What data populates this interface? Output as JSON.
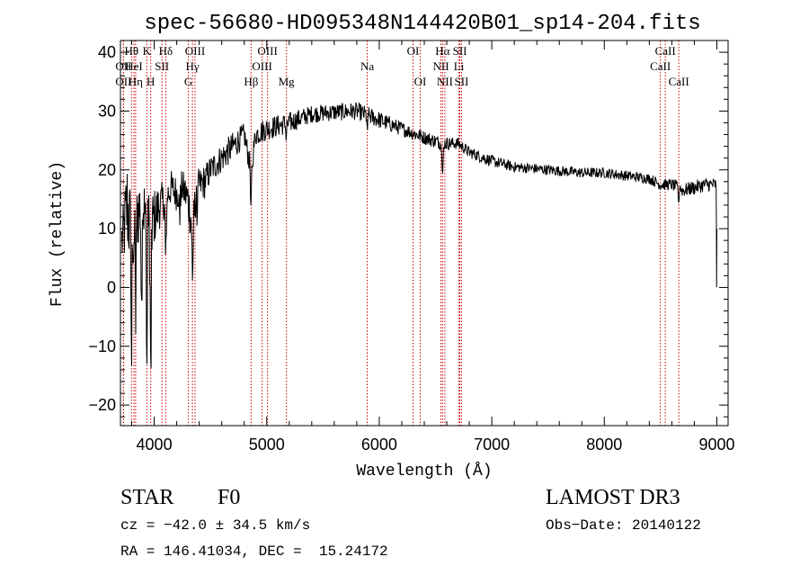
{
  "chart_data": {
    "type": "line",
    "title": "spec-56680-HD095348N144420B01_sp14-204.fits",
    "xlabel": "Wavelength (Å)",
    "ylabel": "Flux (relative)",
    "xlim": [
      3700,
      9100
    ],
    "ylim": [
      -23.5,
      42
    ],
    "xticks": [
      4000,
      5000,
      6000,
      7000,
      8000,
      9000
    ],
    "yticks": [
      -20,
      -10,
      0,
      10,
      20,
      30,
      40
    ],
    "color": "#000000",
    "line_color": "#cc0000",
    "spectrum_knots": [
      [
        3720,
        8,
        5
      ],
      [
        3760,
        14,
        9
      ],
      [
        3800,
        8,
        8
      ],
      [
        3850,
        13,
        7
      ],
      [
        3900,
        14,
        6
      ],
      [
        3950,
        10,
        7
      ],
      [
        4000,
        12,
        5
      ],
      [
        4050,
        14,
        4
      ],
      [
        4100,
        15,
        3
      ],
      [
        4150,
        17,
        3
      ],
      [
        4200,
        16,
        3
      ],
      [
        4250,
        17,
        3
      ],
      [
        4300,
        15,
        4
      ],
      [
        4340,
        10,
        4
      ],
      [
        4380,
        17,
        3
      ],
      [
        4450,
        18,
        3
      ],
      [
        4500,
        20,
        2.5
      ],
      [
        4600,
        22,
        2.5
      ],
      [
        4700,
        24,
        2.5
      ],
      [
        4800,
        26,
        2
      ],
      [
        4860,
        20,
        2
      ],
      [
        4900,
        26,
        2
      ],
      [
        5000,
        27,
        2
      ],
      [
        5200,
        28,
        1.8
      ],
      [
        5400,
        29.5,
        1.5
      ],
      [
        5600,
        29.8,
        1.5
      ],
      [
        5800,
        30,
        1.5
      ],
      [
        6000,
        28.5,
        1.5
      ],
      [
        6200,
        27,
        1.2
      ],
      [
        6400,
        25.5,
        1.2
      ],
      [
        6560,
        24.5,
        1.2
      ],
      [
        6700,
        24.5,
        1
      ],
      [
        6800,
        23,
        1
      ],
      [
        7000,
        21.5,
        1
      ],
      [
        7200,
        20.5,
        0.9
      ],
      [
        7500,
        20,
        0.9
      ],
      [
        7800,
        19.5,
        0.9
      ],
      [
        8000,
        19.5,
        0.9
      ],
      [
        8200,
        19,
        0.9
      ],
      [
        8400,
        18.5,
        0.9
      ],
      [
        8500,
        17.5,
        1
      ],
      [
        8600,
        17.5,
        1
      ],
      [
        8700,
        16.5,
        1.2
      ],
      [
        8800,
        17,
        1.2
      ],
      [
        8900,
        17.5,
        1.2
      ],
      [
        8980,
        17.5,
        1.2
      ]
    ],
    "spectrum_dips": [
      [
        3798,
        22
      ],
      [
        3835,
        20
      ],
      [
        3889,
        25
      ],
      [
        3934,
        31
      ],
      [
        3969,
        30
      ],
      [
        4102,
        12
      ],
      [
        4226,
        6
      ],
      [
        4341,
        10
      ],
      [
        4383,
        6
      ],
      [
        4861,
        7
      ],
      [
        5172,
        3
      ],
      [
        5893,
        3
      ],
      [
        6563,
        7
      ],
      [
        8662,
        2
      ]
    ],
    "spectral_lines": [
      {
        "name": "OII",
        "wavelength": 3727,
        "row": 2
      },
      {
        "name": "OII",
        "wavelength": 3727,
        "row": 3
      },
      {
        "name": "Hθ",
        "wavelength": 3798,
        "row": 1
      },
      {
        "name": "HeI",
        "wavelength": 3820,
        "row": 2
      },
      {
        "name": "Hη",
        "wavelength": 3835,
        "row": 3
      },
      {
        "name": "K",
        "wavelength": 3934,
        "row": 1
      },
      {
        "name": "SII",
        "wavelength": 4069,
        "row": 2
      },
      {
        "name": "H",
        "wavelength": 3969,
        "row": 3
      },
      {
        "name": "Hδ",
        "wavelength": 4102,
        "row": 1
      },
      {
        "name": "OIII",
        "wavelength": 4363,
        "row": 1
      },
      {
        "name": "Hγ",
        "wavelength": 4340,
        "row": 2
      },
      {
        "name": "G",
        "wavelength": 4304,
        "row": 3
      },
      {
        "name": "Hβ",
        "wavelength": 4861,
        "row": 3
      },
      {
        "name": "OIII",
        "wavelength": 5007,
        "row": 1
      },
      {
        "name": "OIII",
        "wavelength": 4959,
        "row": 2
      },
      {
        "name": "Mg",
        "wavelength": 5175,
        "row": 3
      },
      {
        "name": "Na",
        "wavelength": 5893,
        "row": 2
      },
      {
        "name": "OI",
        "wavelength": 6300,
        "row": 1
      },
      {
        "name": "OI",
        "wavelength": 6364,
        "row": 3
      },
      {
        "name": "Hα",
        "wavelength": 6563,
        "row": 1
      },
      {
        "name": "NII",
        "wavelength": 6548,
        "row": 2
      },
      {
        "name": "NII",
        "wavelength": 6583,
        "row": 3
      },
      {
        "name": "SII",
        "wavelength": 6716,
        "row": 1
      },
      {
        "name": "Li",
        "wavelength": 6708,
        "row": 2
      },
      {
        "name": "SII",
        "wavelength": 6731,
        "row": 3
      },
      {
        "name": "CaII",
        "wavelength": 8542,
        "row": 1
      },
      {
        "name": "CaII",
        "wavelength": 8498,
        "row": 2
      },
      {
        "name": "CaII",
        "wavelength": 8662,
        "row": 3
      }
    ]
  },
  "info": {
    "class": "STAR",
    "subclass": "F0",
    "survey": "LAMOST DR3",
    "cz": "cz = −42.0 ± 34.5 km/s",
    "obs_date": "Obs−Date: 20140122",
    "coords": "RA = 146.41034, DEC =  15.24172"
  }
}
